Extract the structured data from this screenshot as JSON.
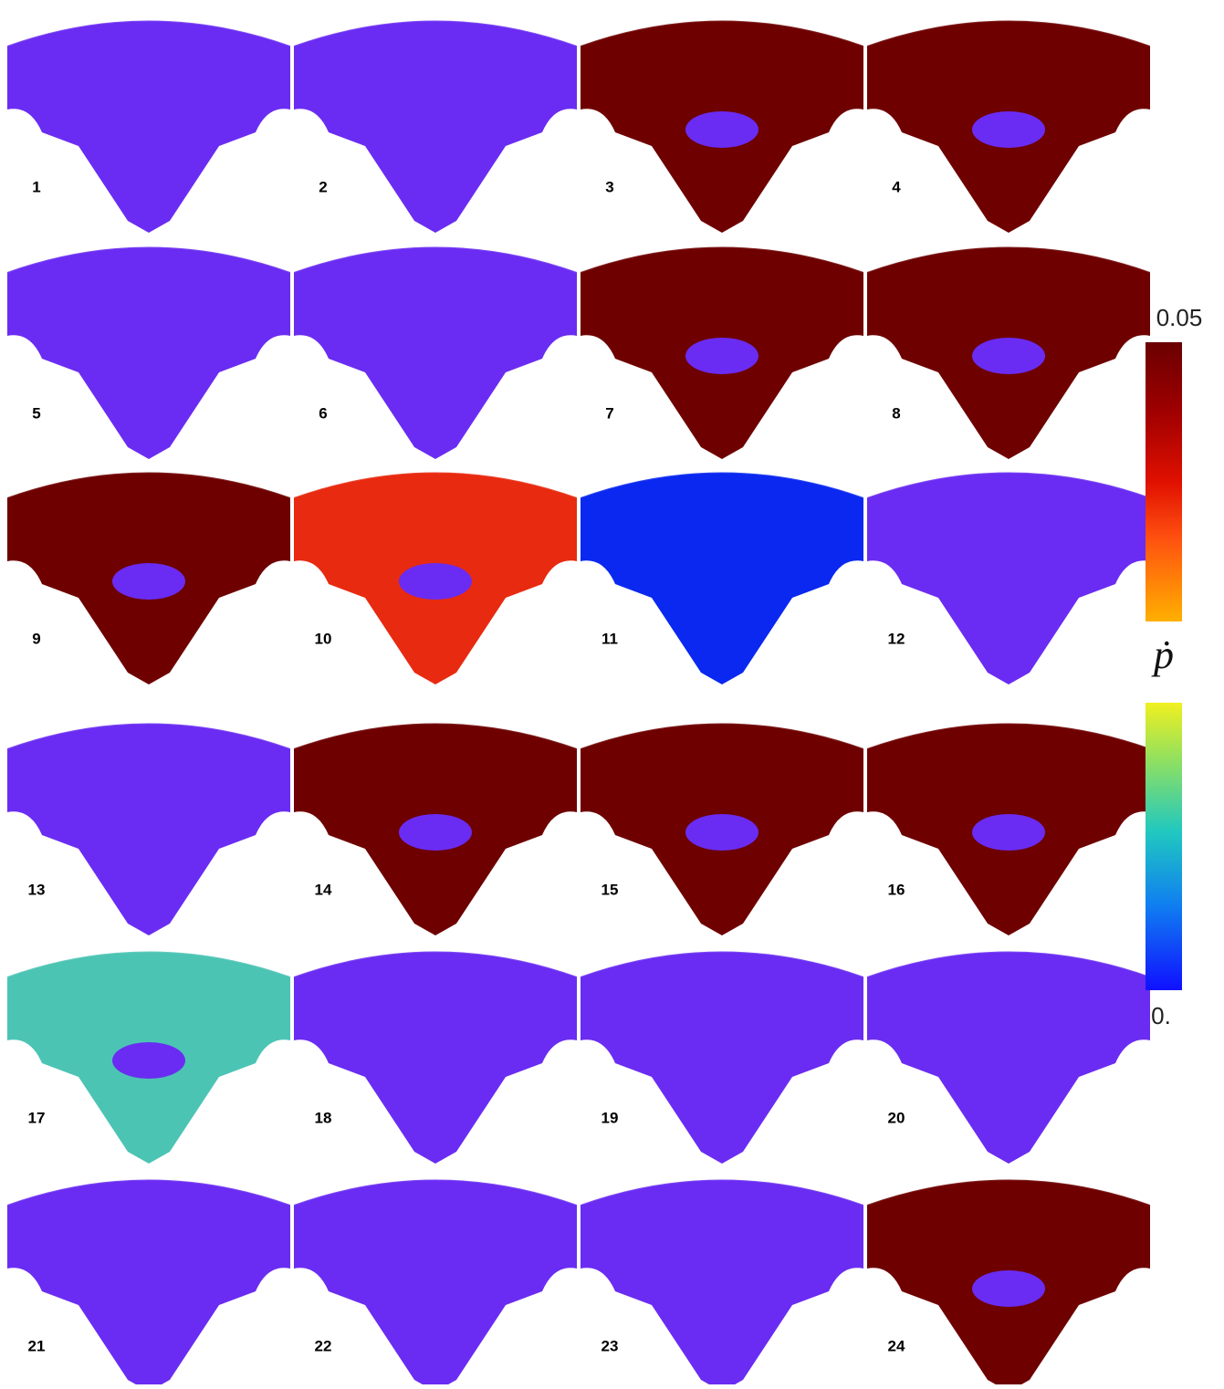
{
  "panels": [
    {
      "label": "1"
    },
    {
      "label": "2"
    },
    {
      "label": "3"
    },
    {
      "label": "4"
    },
    {
      "label": "5"
    },
    {
      "label": "6"
    },
    {
      "label": "7"
    },
    {
      "label": "8"
    },
    {
      "label": "9"
    },
    {
      "label": "10"
    },
    {
      "label": "11"
    },
    {
      "label": "12"
    },
    {
      "label": "13"
    },
    {
      "label": "14"
    },
    {
      "label": "15"
    },
    {
      "label": "16"
    },
    {
      "label": "17"
    },
    {
      "label": "18"
    },
    {
      "label": "19"
    },
    {
      "label": "20"
    },
    {
      "label": "21"
    },
    {
      "label": "22"
    },
    {
      "label": "23"
    },
    {
      "label": "24"
    }
  ],
  "colorbar": {
    "max_label": "0.05",
    "min_label": "0.",
    "symbol": "ṗ"
  }
}
